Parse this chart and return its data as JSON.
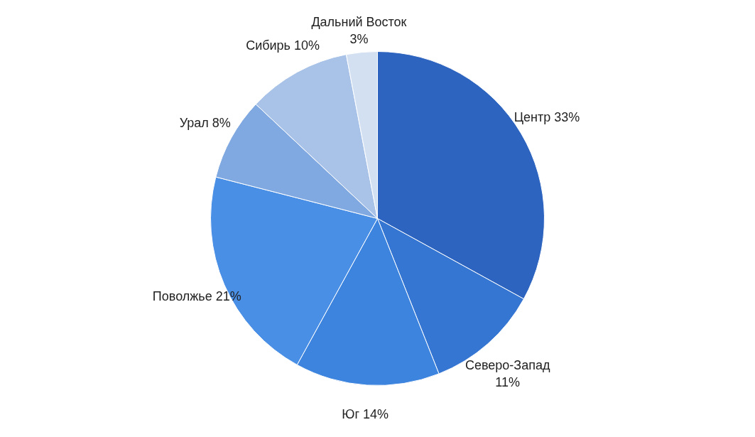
{
  "chart_data": {
    "type": "pie",
    "categories": [
      "Центр",
      "Северо-Запад",
      "Юг",
      "Поволжье",
      "Урал",
      "Сибирь",
      "Дальний Восток"
    ],
    "values": [
      33,
      11,
      14,
      21,
      8,
      10,
      3
    ],
    "value_labels": [
      "33%",
      "11%",
      "14%",
      "21%",
      "8%",
      "10%",
      "3%"
    ],
    "colors": [
      "#2c64c0",
      "#3576d2",
      "#3d84df",
      "#4a8fe6",
      "#7fa9e0",
      "#a9c3e8",
      "#d3e0f2"
    ]
  }
}
